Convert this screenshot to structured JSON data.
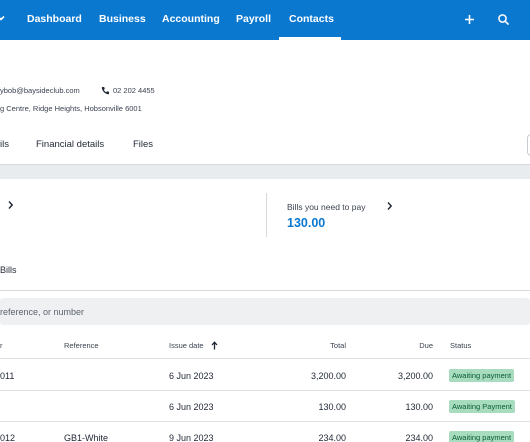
{
  "nav": {
    "items": [
      "Dashboard",
      "Business",
      "Accounting",
      "Payroll",
      "Contacts"
    ],
    "active": "Contacts",
    "colors": {
      "bar": "#0b78d0",
      "text": "#ffffff"
    }
  },
  "contact": {
    "email": "ybob@baysideclub.com",
    "phone": "02 202 4455",
    "address": "g Centre, Ridge Heights, Hobsonville 6001"
  },
  "tabs": [
    "ils",
    "Financial details",
    "Files"
  ],
  "summary": {
    "bills_label": "Bills you need to pay",
    "bills_amount": "130.00"
  },
  "bills_heading": "Bills",
  "search": {
    "placeholder": "reference, or number"
  },
  "table": {
    "headers": {
      "number": "r",
      "reference": "Reference",
      "issue_date": "Issue date",
      "total": "Total",
      "due": "Due",
      "status": "Status"
    },
    "rows": [
      {
        "number": "011",
        "reference": "",
        "issue_date": "6 Jun 2023",
        "total": "3,200.00",
        "due": "3,200.00",
        "status": "Awaiting payment"
      },
      {
        "number": "",
        "reference": "",
        "issue_date": "6 Jun 2023",
        "total": "130.00",
        "due": "130.00",
        "status": "Awaiting Payment"
      },
      {
        "number": "012",
        "reference": "GB1-White",
        "issue_date": "9 Jun 2023",
        "total": "234.00",
        "due": "234.00",
        "status": "Awaiting payment"
      }
    ]
  },
  "colors": {
    "accent": "#0b78d0",
    "status_badge": "#a8dcbf",
    "status_text": "#0a5b34"
  }
}
